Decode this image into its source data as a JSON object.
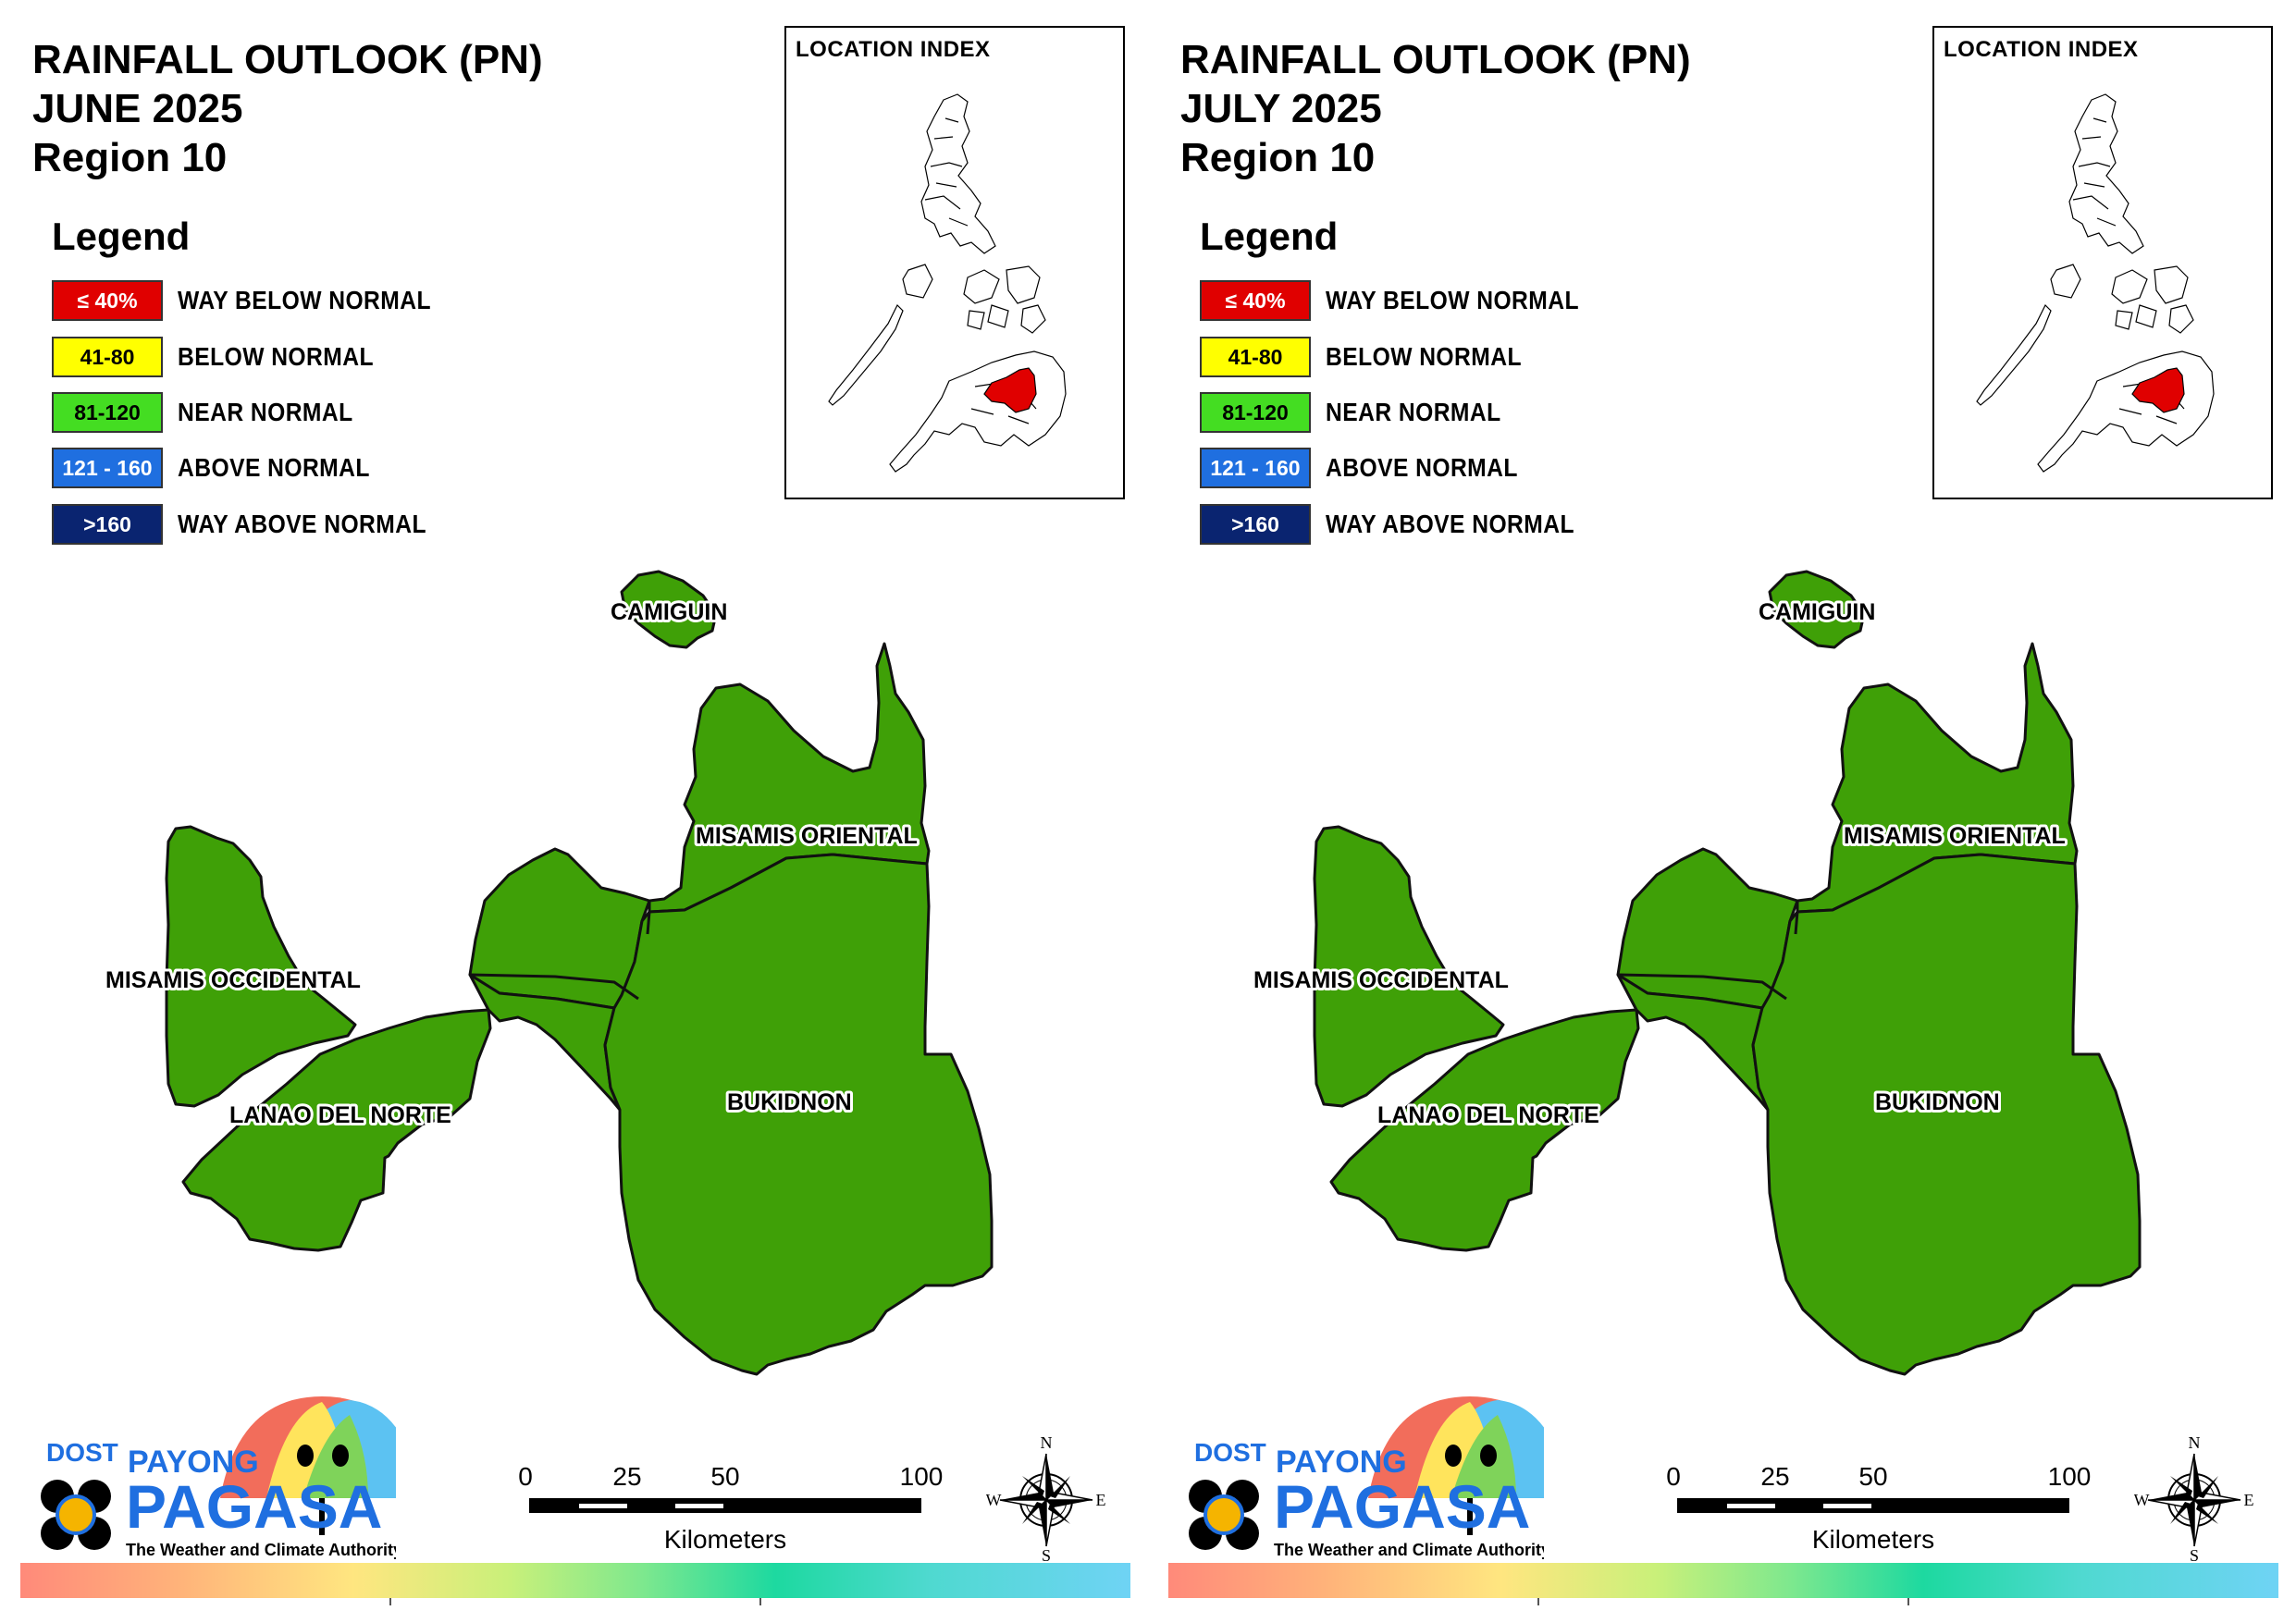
{
  "panels": [
    {
      "title_lines": [
        "RAINFALL OUTLOOK (PN)",
        "JUNE 2025",
        "Region 10"
      ],
      "legend_title": "Legend",
      "legend": [
        {
          "range": "≤ 40%",
          "label": "WAY BELOW NORMAL",
          "color": "#e00000",
          "text_color": "#ffffff"
        },
        {
          "range": "41-80",
          "label": "BELOW NORMAL",
          "color": "#ffff00",
          "text_color": "#000000"
        },
        {
          "range": "81-120",
          "label": "NEAR NORMAL",
          "color": "#44dd22",
          "text_color": "#000000"
        },
        {
          "range": "121 - 160",
          "label": "ABOVE NORMAL",
          "color": "#1f6fe0",
          "text_color": "#ffffff"
        },
        {
          "range": ">160",
          "label": "WAY ABOVE NORMAL",
          "color": "#0a2470",
          "text_color": "#ffffff"
        }
      ],
      "inset_title": "LOCATION INDEX",
      "provinces": [
        {
          "name": "CAMIGUIN",
          "category": "NEAR NORMAL"
        },
        {
          "name": "MISAMIS ORIENTAL",
          "category": "NEAR NORMAL"
        },
        {
          "name": "MISAMIS OCCIDENTAL",
          "category": "NEAR NORMAL"
        },
        {
          "name": "LANAO DEL NORTE",
          "category": "NEAR NORMAL"
        },
        {
          "name": "BUKIDNON",
          "category": "NEAR NORMAL"
        }
      ],
      "scale_labels": [
        "0",
        "25",
        "50",
        "100"
      ],
      "scale_unit": "Kilometers",
      "compass": {
        "n": "N",
        "s": "S",
        "e": "E",
        "w": "W"
      },
      "logo": {
        "dost": "DOST",
        "payong": "PAYONG",
        "pagasa": "PAGASA",
        "tagline": "The Weather and Climate Authority"
      }
    },
    {
      "title_lines": [
        "RAINFALL OUTLOOK (PN)",
        "JULY 2025",
        "Region 10"
      ],
      "legend_title": "Legend",
      "legend": [
        {
          "range": "≤ 40%",
          "label": "WAY BELOW NORMAL",
          "color": "#e00000",
          "text_color": "#ffffff"
        },
        {
          "range": "41-80",
          "label": "BELOW NORMAL",
          "color": "#ffff00",
          "text_color": "#000000"
        },
        {
          "range": "81-120",
          "label": "NEAR NORMAL",
          "color": "#44dd22",
          "text_color": "#000000"
        },
        {
          "range": "121 - 160",
          "label": "ABOVE NORMAL",
          "color": "#1f6fe0",
          "text_color": "#ffffff"
        },
        {
          "range": ">160",
          "label": "WAY ABOVE NORMAL",
          "color": "#0a2470",
          "text_color": "#ffffff"
        }
      ],
      "inset_title": "LOCATION INDEX",
      "provinces": [
        {
          "name": "CAMIGUIN",
          "category": "NEAR NORMAL"
        },
        {
          "name": "MISAMIS ORIENTAL",
          "category": "NEAR NORMAL"
        },
        {
          "name": "MISAMIS OCCIDENTAL",
          "category": "NEAR NORMAL"
        },
        {
          "name": "LANAO DEL NORTE",
          "category": "NEAR NORMAL"
        },
        {
          "name": "BUKIDNON",
          "category": "NEAR NORMAL"
        }
      ],
      "scale_labels": [
        "0",
        "25",
        "50",
        "100"
      ],
      "scale_unit": "Kilometers",
      "compass": {
        "n": "N",
        "s": "S",
        "e": "E",
        "w": "W"
      },
      "logo": {
        "dost": "DOST",
        "payong": "PAYONG",
        "pagasa": "PAGASA",
        "tagline": "The Weather and Climate Authority"
      }
    }
  ],
  "colors": {
    "map_fill": "#3fa007",
    "highlight": "#e00000"
  },
  "icons": [
    "compass-rose-icon",
    "umbrella-mascot-icon",
    "dost-logo-icon"
  ]
}
